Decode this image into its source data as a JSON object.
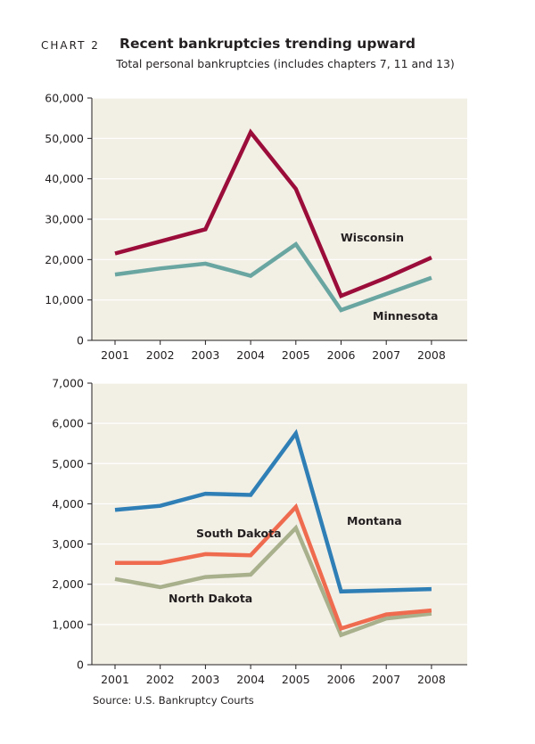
{
  "chart_number": "CHART 2",
  "title": "Recent bankruptcies trending upward",
  "subtitle": "Total personal bankruptcies (includes chapters 7, 11 and 13)",
  "source": "Source: U.S. Bankruptcy Courts",
  "background_color": "#f2efe5",
  "chart_data": [
    {
      "type": "line",
      "x": [
        "2001",
        "2002",
        "2003",
        "2004",
        "2005",
        "2006",
        "2007",
        "2008"
      ],
      "ylim": [
        0,
        60000
      ],
      "yticks": [
        "0",
        "10,000",
        "20,000",
        "30,000",
        "40,000",
        "50,000",
        "60,000"
      ],
      "ytick_values": [
        0,
        10000,
        20000,
        30000,
        40000,
        50000,
        60000
      ],
      "grid": "horizontal",
      "series": [
        {
          "name": "Wisconsin",
          "color": "#9b0d3a",
          "values": [
            21500,
            24500,
            27500,
            51500,
            37500,
            11000,
            15500,
            20500
          ]
        },
        {
          "name": "Minnesota",
          "color": "#6aa6a1",
          "values": [
            16300,
            17800,
            19000,
            16000,
            23800,
            7500,
            11500,
            15500
          ]
        }
      ]
    },
    {
      "type": "line",
      "x": [
        "2001",
        "2002",
        "2003",
        "2004",
        "2005",
        "2006",
        "2007",
        "2008"
      ],
      "ylim": [
        0,
        7000
      ],
      "yticks": [
        "0",
        "1,000",
        "2,000",
        "3,000",
        "4,000",
        "5,000",
        "6,000",
        "7,000"
      ],
      "ytick_values": [
        0,
        1000,
        2000,
        3000,
        4000,
        5000,
        6000,
        7000
      ],
      "grid": "horizontal",
      "series": [
        {
          "name": "Montana",
          "color": "#2f7fb6",
          "values": [
            3850,
            3950,
            4250,
            4220,
            5750,
            1820,
            1850,
            1880
          ]
        },
        {
          "name": "South Dakota",
          "color": "#ef6b4f",
          "values": [
            2530,
            2530,
            2750,
            2720,
            3920,
            900,
            1250,
            1350
          ]
        },
        {
          "name": "North Dakota",
          "color": "#a8b08c",
          "values": [
            2130,
            1930,
            2180,
            2240,
            3400,
            740,
            1150,
            1270
          ]
        }
      ]
    }
  ]
}
